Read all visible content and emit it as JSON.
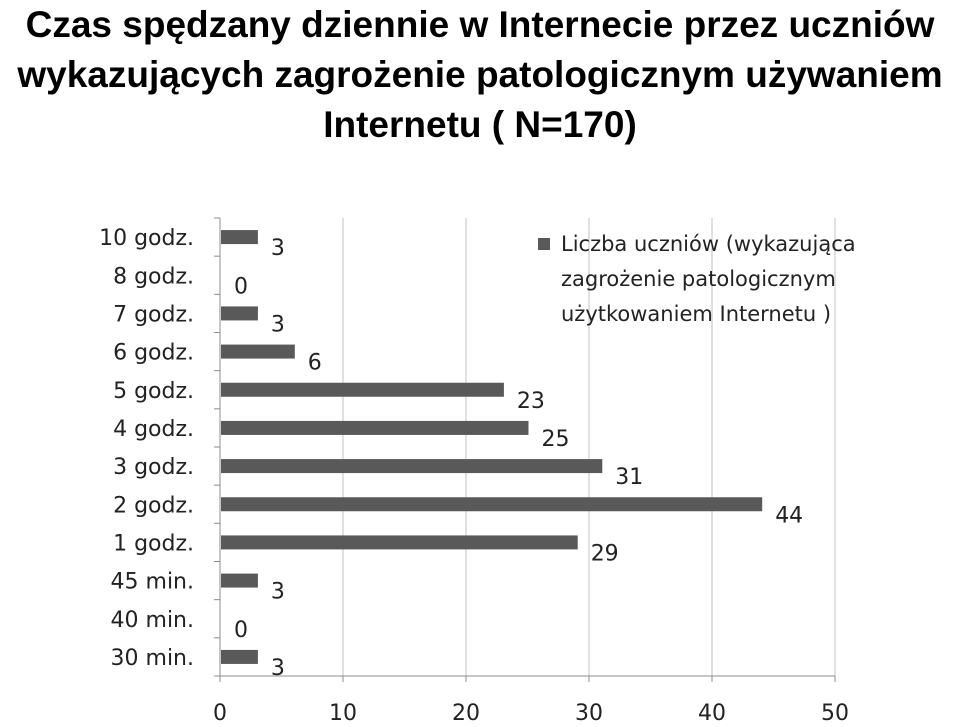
{
  "chart_data": {
    "type": "bar",
    "orientation": "horizontal",
    "title": "Czas spędzany dziennie w Internecie przez uczniów wykazujących zagrożenie patologicznym używaniem Internetu ( N=170)",
    "categories": [
      "10 godz.",
      "8 godz.",
      "7 godz.",
      "6 godz.",
      "5 godz.",
      "4 godz.",
      "3 godz.",
      "2 godz.",
      "1 godz.",
      "45 min.",
      "40 min.",
      "30 min."
    ],
    "series": [
      {
        "name": "Liczba uczniów (wykazująca zagrożenie patologicznym użytkowaniem Internetu )",
        "values": [
          3,
          0,
          3,
          6,
          23,
          25,
          31,
          44,
          29,
          3,
          0,
          3
        ]
      }
    ],
    "xlim": [
      0,
      50
    ],
    "xticks": [
      0,
      10,
      20,
      30,
      40,
      50
    ],
    "grid": "vertical",
    "legend_position": "top-right",
    "bar_color": "#595959",
    "xlabel": "",
    "ylabel": ""
  },
  "legend_lines": [
    "Liczba uczniów (wykazująca",
    "zagrożenie patologicznym",
    "użytkowaniem Internetu )"
  ]
}
